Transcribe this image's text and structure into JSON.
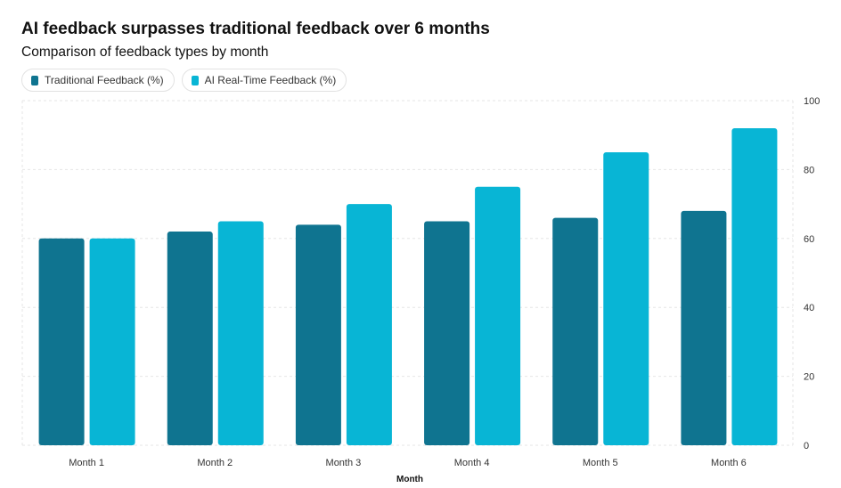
{
  "chart_data": {
    "type": "bar",
    "title": "AI feedback surpasses traditional feedback over 6 months",
    "subtitle": "Comparison of feedback types by month",
    "xlabel": "Month",
    "ylabel": "",
    "categories": [
      "Month 1",
      "Month 2",
      "Month 3",
      "Month 4",
      "Month 5",
      "Month 6"
    ],
    "series": [
      {
        "name": "Traditional Feedback (%)",
        "color": "#0f7490",
        "values": [
          60,
          62,
          64,
          65,
          66,
          68
        ]
      },
      {
        "name": "AI Real-Time Feedback (%)",
        "color": "#08b5d5",
        "values": [
          60,
          65,
          70,
          75,
          85,
          92
        ]
      }
    ],
    "ylim": [
      0,
      100
    ],
    "yticks": [
      0,
      20,
      40,
      60,
      80,
      100
    ],
    "grid": true,
    "legend_position": "top-left",
    "y_axis_side": "right"
  }
}
